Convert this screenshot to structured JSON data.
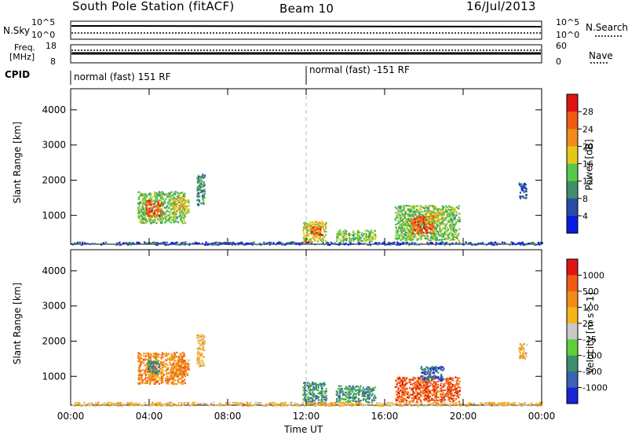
{
  "header": {
    "station": "South Pole Station (fitACF)",
    "beam": "Beam 10",
    "date": "16/Jul/2013"
  },
  "top_panels": {
    "nsky_label": "N.Sky",
    "nsky_ticks": [
      "10^5",
      "10^0"
    ],
    "nsearch_label": "N.Search",
    "nsearch_ticks": [
      "10^5",
      "10^0"
    ],
    "freq_label_1": "Freq.",
    "freq_label_2": "[MHz]",
    "freq_ticks": [
      "18",
      "8"
    ],
    "nave_label": "Nave",
    "nave_ticks": [
      "60",
      "0"
    ],
    "cpid_label": "CPID",
    "cpid_segments": [
      "normal (fast) 151 RF",
      "normal (fast) -151 RF"
    ]
  },
  "chart_data": [
    {
      "type": "heatmap",
      "quantity": "Power",
      "xlabel": "",
      "ylabel": "Slant Range [km]",
      "x_ticks": [
        "00:00",
        "04:00",
        "08:00",
        "12:00",
        "16:00",
        "20:00",
        "00:00"
      ],
      "x_range_hours": [
        0,
        24
      ],
      "y_ticks": [
        1000,
        2000,
        3000,
        4000
      ],
      "y_range": [
        180,
        4600
      ],
      "colorbar_label": "Power [dB]",
      "colorbar_ticks": [
        4,
        8,
        12,
        16,
        20,
        24,
        28
      ],
      "colorbar_colors": [
        "#0a1be0",
        "#2a4aa8",
        "#3f8f6a",
        "#55c84a",
        "#e3c81a",
        "#f08b1c",
        "#f05a12",
        "#e01414"
      ],
      "patches": [
        {
          "t0": 3.4,
          "t1": 5.8,
          "r0": 800,
          "r1": 1700,
          "level": 3
        },
        {
          "t0": 3.8,
          "t1": 4.6,
          "r0": 1000,
          "r1": 1450,
          "level": 6
        },
        {
          "t0": 5.2,
          "t1": 6.0,
          "r0": 1050,
          "r1": 1500,
          "level": 4
        },
        {
          "t0": 6.4,
          "t1": 6.8,
          "r0": 1300,
          "r1": 2200,
          "level": 2
        },
        {
          "t0": 11.8,
          "t1": 13.0,
          "r0": 250,
          "r1": 850,
          "level": 4
        },
        {
          "t0": 12.2,
          "t1": 12.8,
          "r0": 450,
          "r1": 700,
          "level": 6
        },
        {
          "t0": 13.5,
          "t1": 15.5,
          "r0": 280,
          "r1": 600,
          "level": 3
        },
        {
          "t0": 16.5,
          "t1": 19.8,
          "r0": 300,
          "r1": 1300,
          "level": 3
        },
        {
          "t0": 17.3,
          "t1": 18.5,
          "r0": 500,
          "r1": 1000,
          "level": 6
        },
        {
          "t0": 18.0,
          "t1": 19.0,
          "r0": 800,
          "r1": 1150,
          "level": 4
        },
        {
          "t0": 22.8,
          "t1": 23.2,
          "r0": 1500,
          "r1": 1950,
          "level": 1
        },
        {
          "t0": 0.0,
          "t1": 24.0,
          "r0": 180,
          "r1": 260,
          "level": 1
        }
      ]
    },
    {
      "type": "heatmap",
      "quantity": "Velocity",
      "xlabel": "Time UT",
      "ylabel": "Slant Range [km]",
      "x_ticks": [
        "00:00",
        "04:00",
        "08:00",
        "12:00",
        "16:00",
        "20:00",
        "00:00"
      ],
      "x_range_hours": [
        0,
        24
      ],
      "y_ticks": [
        1000,
        2000,
        3000,
        4000
      ],
      "y_range": [
        180,
        4600
      ],
      "colorbar_label": "Velocity [m s^-1]",
      "colorbar_ticks": [
        "1000",
        "500",
        "100",
        "25",
        "-25",
        "-100",
        "-500",
        "-1000"
      ],
      "colorbar_colors": [
        "#1a22d6",
        "#3a62b0",
        "#3f8f6a",
        "#5fcf3a",
        "#c8c8c8",
        "#f5b41a",
        "#f08b1c",
        "#f05a12",
        "#e01414"
      ],
      "patches": [
        {
          "t0": 3.4,
          "t1": 5.8,
          "r0": 800,
          "r1": 1700,
          "level": 6
        },
        {
          "t0": 3.9,
          "t1": 4.5,
          "r0": 1100,
          "r1": 1500,
          "level": 2
        },
        {
          "t0": 5.2,
          "t1": 6.0,
          "r0": 1050,
          "r1": 1500,
          "level": 6
        },
        {
          "t0": 6.4,
          "t1": 6.8,
          "r0": 1300,
          "r1": 2200,
          "level": 5
        },
        {
          "t0": 11.8,
          "t1": 13.0,
          "r0": 250,
          "r1": 850,
          "level": 2
        },
        {
          "t0": 13.5,
          "t1": 15.5,
          "r0": 280,
          "r1": 750,
          "level": 2
        },
        {
          "t0": 16.5,
          "t1": 19.8,
          "r0": 300,
          "r1": 1000,
          "level": 7
        },
        {
          "t0": 17.8,
          "t1": 19.0,
          "r0": 900,
          "r1": 1300,
          "level": 1
        },
        {
          "t0": 22.8,
          "t1": 23.2,
          "r0": 1500,
          "r1": 1950,
          "level": 5
        },
        {
          "t0": 0.0,
          "t1": 24.0,
          "r0": 180,
          "r1": 280,
          "level": 5
        }
      ]
    }
  ]
}
